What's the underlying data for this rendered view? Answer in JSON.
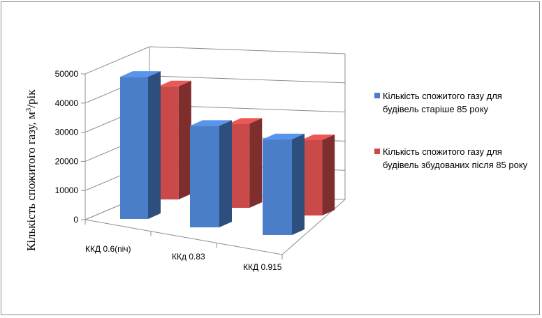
{
  "chart_data": {
    "type": "bar",
    "categories": [
      "ККД 0.6(піч)",
      "ККд 0.83",
      "ККД 0.915"
    ],
    "series": [
      {
        "name": "Кількість спожитого газу для будівель старіше 85 року",
        "values": [
          49000,
          35000,
          33000
        ],
        "color": "#4a7ec9"
      },
      {
        "name": "Кількість спожитого газу для будівель збудованих після 85 року",
        "values": [
          39000,
          29000,
          26000
        ],
        "color": "#c94a48"
      }
    ],
    "title": "",
    "xlabel": "",
    "ylabel": "Кількість спожитого газу, м",
    "ylabel_sup": "3",
    "ylabel_suffix": "/рік",
    "yticks": [
      "0",
      "10000",
      "20000",
      "30000",
      "40000",
      "50000"
    ],
    "ylim": [
      0,
      50000
    ],
    "grid": true,
    "legend_position": "right"
  }
}
